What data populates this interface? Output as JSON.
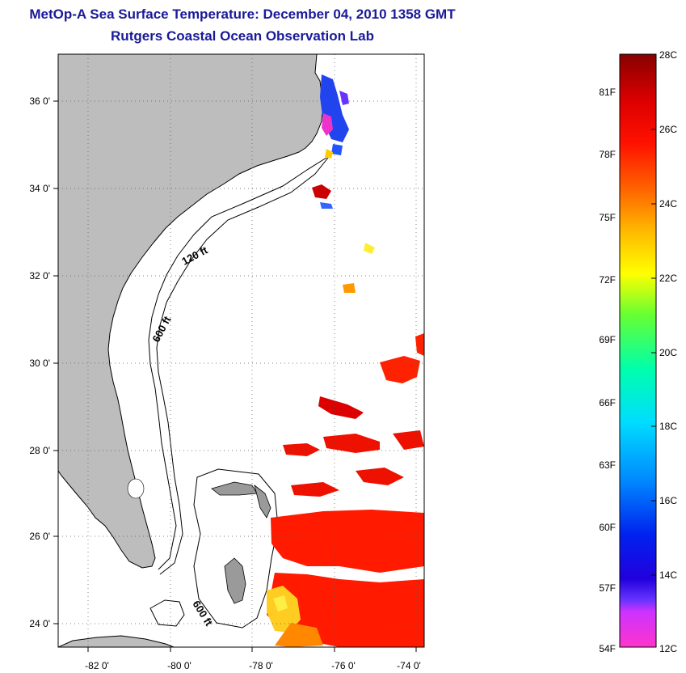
{
  "title": "MetOp-A Sea Surface Temperature:  December 04, 2010 1358 GMT",
  "subtitle": "Rutgers Coastal Ocean Observation Lab",
  "map": {
    "x_ticks": [
      "-82 0'",
      "-80 0'",
      "-78 0'",
      "-76 0'",
      "-74 0'"
    ],
    "y_ticks": [
      "36 0'",
      "34 0'",
      "32 0'",
      "30 0'",
      "28 0'",
      "26 0'",
      "24 0'"
    ],
    "contour_labels": [
      "120 ft",
      "600 ft",
      "600 ft"
    ],
    "land_color": "#bdbdbd"
  },
  "colorbar": {
    "celsius": [
      "28C",
      "26C",
      "24C",
      "22C",
      "20C",
      "18C",
      "16C",
      "14C",
      "12C"
    ],
    "fahrenheit": [
      "81F",
      "78F",
      "75F",
      "72F",
      "69F",
      "66F",
      "63F",
      "60F",
      "57F",
      "54F"
    ],
    "range_c": [
      12,
      28
    ],
    "colors": [
      "#ff33cc",
      "#9933ff",
      "#0000dd",
      "#0066ff",
      "#00ccff",
      "#00ffaa",
      "#66ff00",
      "#ffff00",
      "#ffaa00",
      "#ff4400",
      "#ee0000",
      "#990000"
    ]
  }
}
